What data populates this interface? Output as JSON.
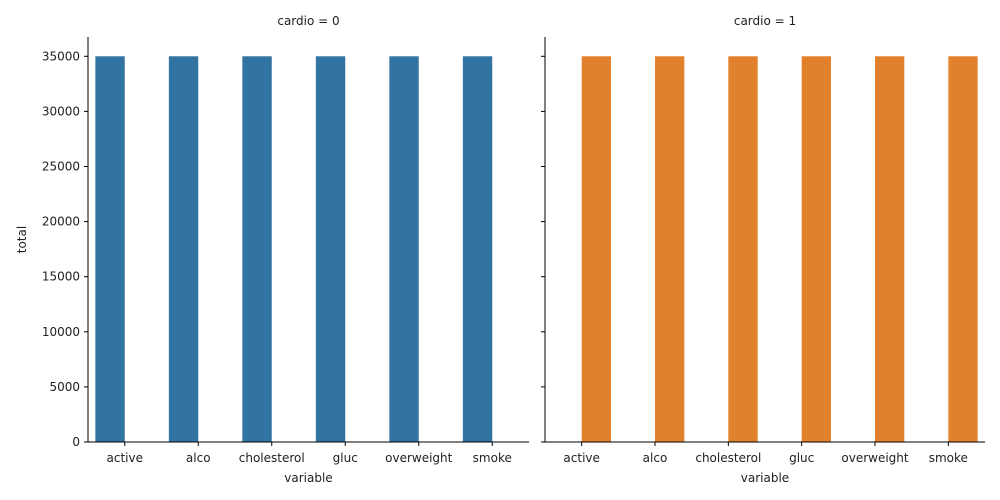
{
  "chart_data": [
    {
      "type": "bar",
      "title": "cardio = 0",
      "xlabel": "variable",
      "ylabel": "total",
      "categories": [
        "active",
        "alco",
        "cholesterol",
        "gluc",
        "overweight",
        "smoke"
      ],
      "values": [
        35000,
        35000,
        35000,
        35000,
        35000,
        35000
      ],
      "color": "#3274a1",
      "ylim": [
        0,
        36750
      ],
      "yticks": [
        0,
        5000,
        10000,
        15000,
        20000,
        25000,
        30000,
        35000
      ]
    },
    {
      "type": "bar",
      "title": "cardio = 1",
      "xlabel": "variable",
      "ylabel": "",
      "categories": [
        "active",
        "alco",
        "cholesterol",
        "gluc",
        "overweight",
        "smoke"
      ],
      "values": [
        35000,
        35000,
        35000,
        35000,
        35000,
        35000
      ],
      "color": "#e1812c",
      "ylim": [
        0,
        36750
      ],
      "yticks": [
        0,
        5000,
        10000,
        15000,
        20000,
        25000,
        30000,
        35000
      ]
    }
  ]
}
